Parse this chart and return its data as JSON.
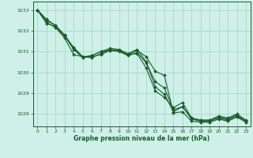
{
  "bg_color": "#cef0e8",
  "grid_color": "#aad8cc",
  "line_color": "#1a5c2a",
  "marker_color": "#1a5c2a",
  "xlabel": "Graphe pression niveau de la mer (hPa)",
  "xlabel_color": "#1a5c2a",
  "tick_color": "#1a5c2a",
  "ylim": [
    1027.4,
    1033.4
  ],
  "xlim": [
    -0.5,
    23.5
  ],
  "yticks": [
    1028,
    1029,
    1030,
    1031,
    1032,
    1033
  ],
  "xticks": [
    0,
    1,
    2,
    3,
    4,
    5,
    6,
    7,
    8,
    9,
    10,
    11,
    12,
    13,
    14,
    15,
    16,
    17,
    18,
    19,
    20,
    21,
    22,
    23
  ],
  "series": [
    [
      1033.0,
      1032.55,
      1032.25,
      1031.75,
      1031.2,
      1030.75,
      1030.8,
      1031.0,
      1031.05,
      1031.05,
      1030.85,
      1031.05,
      1030.75,
      1030.05,
      1029.85,
      1028.05,
      1028.1,
      1027.65,
      1027.6,
      1027.6,
      1027.75,
      1027.65,
      1027.85,
      1027.6
    ],
    [
      1033.0,
      1032.5,
      1032.25,
      1031.8,
      1031.15,
      1030.75,
      1030.75,
      1030.85,
      1031.05,
      1031.0,
      1030.8,
      1030.95,
      1030.45,
      1029.55,
      1029.25,
      1028.2,
      1028.35,
      1027.75,
      1027.65,
      1027.65,
      1027.8,
      1027.7,
      1027.9,
      1027.65
    ],
    [
      1033.0,
      1032.4,
      1032.15,
      1031.65,
      1030.85,
      1030.75,
      1030.7,
      1030.9,
      1031.1,
      1031.05,
      1030.85,
      1030.9,
      1030.2,
      1029.1,
      1028.8,
      1028.3,
      1028.55,
      1027.8,
      1027.7,
      1027.7,
      1027.85,
      1027.75,
      1027.95,
      1027.65
    ],
    [
      1033.0,
      1032.35,
      1032.2,
      1031.75,
      1031.1,
      1030.7,
      1030.8,
      1031.0,
      1031.15,
      1031.1,
      1030.9,
      1031.1,
      1030.5,
      1029.3,
      1028.95,
      1028.1,
      1028.35,
      1027.8,
      1027.7,
      1027.7,
      1027.9,
      1027.8,
      1028.0,
      1027.7
    ]
  ]
}
